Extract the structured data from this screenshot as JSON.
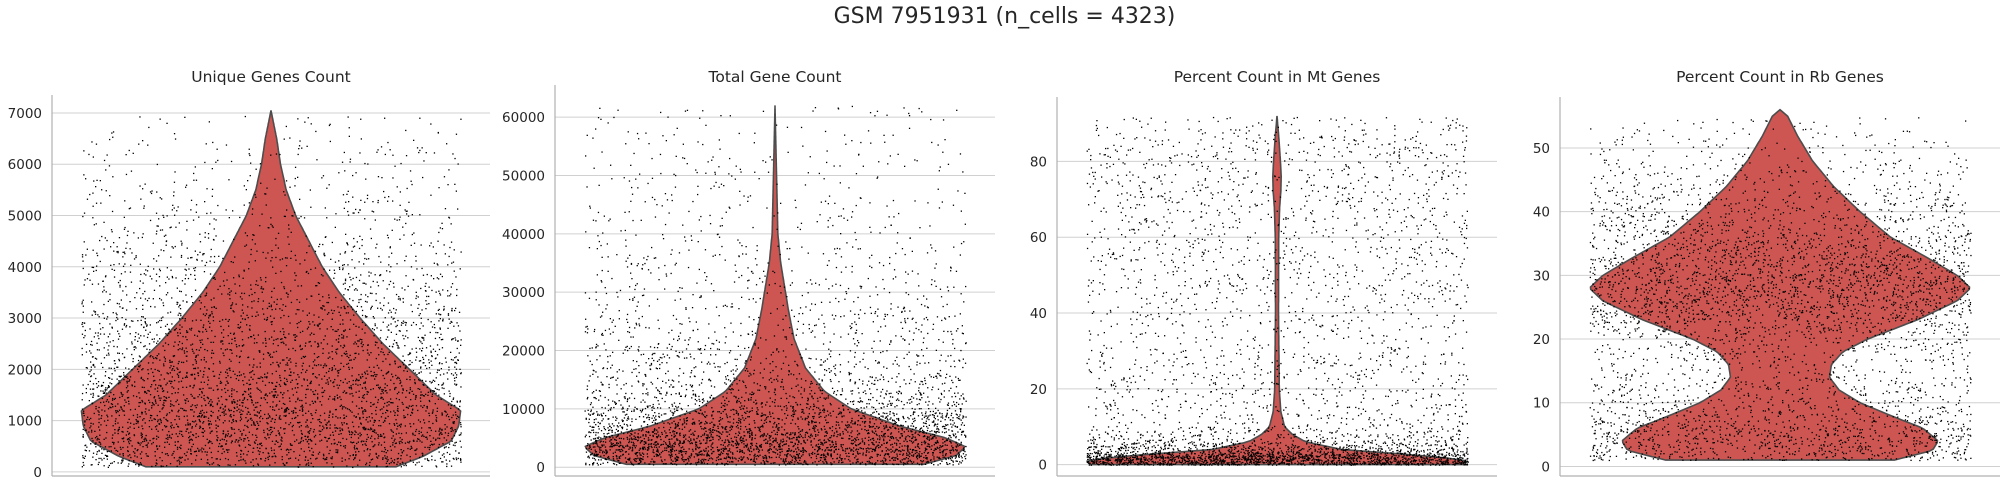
{
  "title": "GSM 7951931 (n_cells = 4323)",
  "colors": {
    "violin": "#cd5652",
    "violin_edge": "#4d4d4d",
    "grid": "#d0d0d0",
    "axis": "#b0b0b0",
    "points": "#000000"
  },
  "chart_data": [
    {
      "type": "violin",
      "title": "Unique Genes Count",
      "ylim": [
        -80,
        7350
      ],
      "yticks": [
        0,
        1000,
        2000,
        3000,
        4000,
        5000,
        6000,
        7000
      ],
      "tick_labels": [
        "0",
        "1000",
        "2000",
        "3000",
        "4000",
        "5000",
        "6000",
        "7000"
      ],
      "grid": true,
      "n_points": 4323,
      "point_range": [
        100,
        7000
      ],
      "violin": {
        "min": 100,
        "max": 7050,
        "profile": [
          [
            100,
            0.66
          ],
          [
            300,
            0.8
          ],
          [
            600,
            0.95
          ],
          [
            900,
            0.99
          ],
          [
            1200,
            1.0
          ],
          [
            1500,
            0.87
          ],
          [
            2000,
            0.73
          ],
          [
            2500,
            0.59
          ],
          [
            3000,
            0.47
          ],
          [
            3500,
            0.36
          ],
          [
            4000,
            0.27
          ],
          [
            4500,
            0.2
          ],
          [
            5000,
            0.13
          ],
          [
            5500,
            0.08
          ],
          [
            6000,
            0.05
          ],
          [
            6500,
            0.03
          ],
          [
            7050,
            0.0
          ]
        ]
      }
    },
    {
      "type": "violin",
      "title": "Total Gene Count",
      "ylim": [
        -1500,
        65500
      ],
      "yticks": [
        0,
        10000,
        20000,
        30000,
        40000,
        50000,
        60000
      ],
      "tick_labels": [
        "0",
        "10000",
        "20000",
        "30000",
        "40000",
        "50000",
        "60000"
      ],
      "grid": true,
      "n_points": 4323,
      "point_range": [
        500,
        62000
      ],
      "violin": {
        "min": 500,
        "max": 62000,
        "profile": [
          [
            500,
            0.78
          ],
          [
            2000,
            0.95
          ],
          [
            3500,
            1.0
          ],
          [
            5000,
            0.9
          ],
          [
            7000,
            0.66
          ],
          [
            10000,
            0.4
          ],
          [
            13000,
            0.26
          ],
          [
            17000,
            0.16
          ],
          [
            22000,
            0.1
          ],
          [
            27000,
            0.07
          ],
          [
            31000,
            0.05
          ],
          [
            35000,
            0.03
          ],
          [
            40000,
            0.015
          ],
          [
            50000,
            0.008
          ],
          [
            62000,
            0.0
          ]
        ]
      }
    },
    {
      "type": "violin",
      "title": "Percent Count in Mt Genes",
      "ylim": [
        -3,
        97
      ],
      "yticks": [
        0,
        20,
        40,
        60,
        80
      ],
      "tick_labels": [
        "0",
        "20",
        "40",
        "60",
        "80"
      ],
      "grid": true,
      "n_points": 4323,
      "point_range": [
        0,
        92
      ],
      "violin": {
        "min": 0,
        "max": 92,
        "profile": [
          [
            0,
            0.98
          ],
          [
            1,
            1.0
          ],
          [
            2,
            0.85
          ],
          [
            3,
            0.6
          ],
          [
            4,
            0.34
          ],
          [
            6,
            0.15
          ],
          [
            8,
            0.08
          ],
          [
            10,
            0.04
          ],
          [
            14,
            0.02
          ],
          [
            20,
            0.012
          ],
          [
            40,
            0.008
          ],
          [
            60,
            0.009
          ],
          [
            68,
            0.014
          ],
          [
            72,
            0.02
          ],
          [
            76,
            0.022
          ],
          [
            80,
            0.018
          ],
          [
            86,
            0.01
          ],
          [
            92,
            0.0
          ]
        ]
      }
    },
    {
      "type": "violin",
      "title": "Percent Count in Rb Genes",
      "ylim": [
        -1.5,
        58
      ],
      "yticks": [
        0,
        10,
        20,
        30,
        40,
        50
      ],
      "tick_labels": [
        "0",
        "10",
        "20",
        "30",
        "40",
        "50"
      ],
      "grid": true,
      "n_points": 4323,
      "point_range": [
        1,
        55
      ],
      "violin": {
        "min": 1,
        "max": 56,
        "profile": [
          [
            1,
            0.6
          ],
          [
            2.5,
            0.8
          ],
          [
            4,
            0.83
          ],
          [
            6,
            0.75
          ],
          [
            8,
            0.58
          ],
          [
            10,
            0.42
          ],
          [
            12,
            0.31
          ],
          [
            14,
            0.26
          ],
          [
            16,
            0.27
          ],
          [
            18,
            0.33
          ],
          [
            20,
            0.46
          ],
          [
            23,
            0.72
          ],
          [
            26,
            0.93
          ],
          [
            28,
            1.0
          ],
          [
            30,
            0.93
          ],
          [
            33,
            0.76
          ],
          [
            36,
            0.58
          ],
          [
            40,
            0.42
          ],
          [
            44,
            0.28
          ],
          [
            48,
            0.17
          ],
          [
            52,
            0.09
          ],
          [
            55,
            0.04
          ],
          [
            56,
            0.0
          ]
        ]
      }
    }
  ]
}
